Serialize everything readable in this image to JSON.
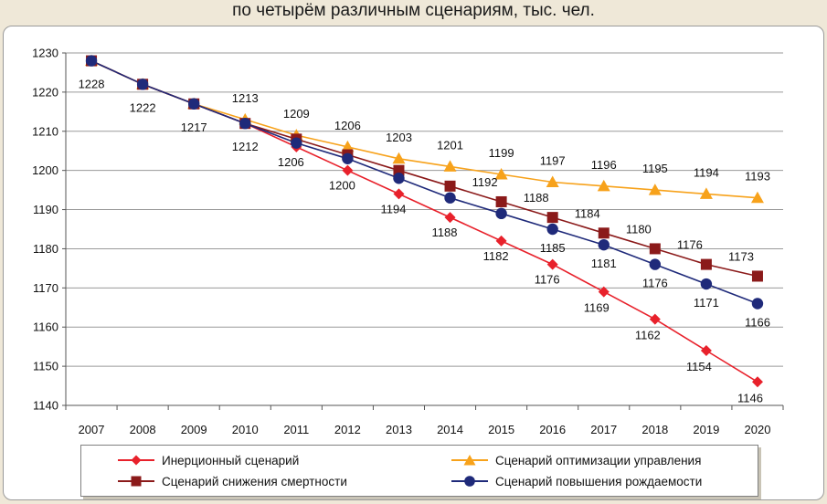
{
  "title": "по четырём различным сценариям, тыс. чел.",
  "chart_data": {
    "type": "line",
    "title": "по четырём различным сценариям, тыс. чел.",
    "xlabel": "",
    "ylabel": "",
    "x": [
      2007,
      2008,
      2009,
      2010,
      2011,
      2012,
      2013,
      2014,
      2015,
      2016,
      2017,
      2018,
      2019,
      2020
    ],
    "ylim": [
      1140,
      1230
    ],
    "yticks": [
      1140,
      1150,
      1160,
      1170,
      1180,
      1190,
      1200,
      1210,
      1220,
      1230
    ],
    "grid": "horizontal",
    "legend_position": "bottom",
    "series": [
      {
        "key": "inertial",
        "name": "Инерционный сценарий",
        "color": "#e8212b",
        "marker": "diamond",
        "values": [
          1228,
          1222,
          1217,
          1212,
          1206,
          1200,
          1194,
          1188,
          1182,
          1176,
          1169,
          1162,
          1154,
          1146
        ],
        "labels": [
          "",
          "",
          "",
          "",
          "1206",
          "1200",
          "1194",
          "1188",
          "1182",
          "1176",
          "1169",
          "1162",
          "1154",
          "1146"
        ]
      },
      {
        "key": "management",
        "name": "Сценарий оптимизации управления",
        "color": "#f7a21b",
        "marker": "triangle",
        "values": [
          1228,
          1222,
          1217,
          1213,
          1209,
          1206,
          1203,
          1201,
          1199,
          1197,
          1196,
          1195,
          1194,
          1193
        ],
        "labels": [
          "",
          "",
          "",
          "1213",
          "1209",
          "1206",
          "1203",
          "1201",
          "1199",
          "1197",
          "1196",
          "1195",
          "1194",
          "1193"
        ]
      },
      {
        "key": "mortality",
        "name": "Сценарий снижения смертности",
        "color": "#8b1a1a",
        "marker": "square",
        "values": [
          1228,
          1222,
          1217,
          1212,
          1208,
          1204,
          1200,
          1196,
          1192,
          1188,
          1184,
          1180,
          1176,
          1173
        ],
        "labels": [
          "1228",
          "1222",
          "1217",
          "1212",
          "",
          "",
          "",
          "",
          "1192",
          "1188",
          "1184",
          "1180",
          "1176",
          "1173"
        ]
      },
      {
        "key": "birth",
        "name": "Сценарий повышения рождаемости",
        "color": "#1f2a7a",
        "marker": "circle",
        "values": [
          1228,
          1222,
          1217,
          1212,
          1207,
          1203,
          1198,
          1193,
          1189,
          1185,
          1181,
          1176,
          1171,
          1166
        ],
        "labels": [
          "",
          "",
          "",
          "",
          "",
          "",
          "",
          "",
          "",
          "1185",
          "1181",
          "1176",
          "1171",
          "1166"
        ]
      }
    ]
  }
}
